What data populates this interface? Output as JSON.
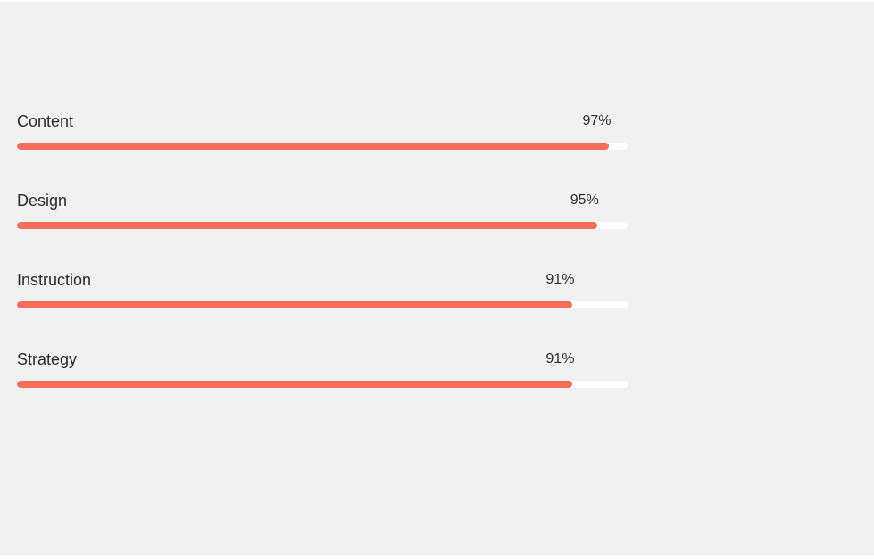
{
  "colors": {
    "accent": "#f56e5c",
    "track": "#ffffff",
    "background": "#f2f1f1",
    "text": "#2b2b2b"
  },
  "skills": [
    {
      "label": "Content",
      "percent_text": "97%",
      "value": 0.97
    },
    {
      "label": "Design",
      "percent_text": "95%",
      "value": 0.95
    },
    {
      "label": "Instruction",
      "percent_text": "91%",
      "value": 0.91
    },
    {
      "label": "Strategy",
      "percent_text": "91%",
      "value": 0.91
    }
  ]
}
